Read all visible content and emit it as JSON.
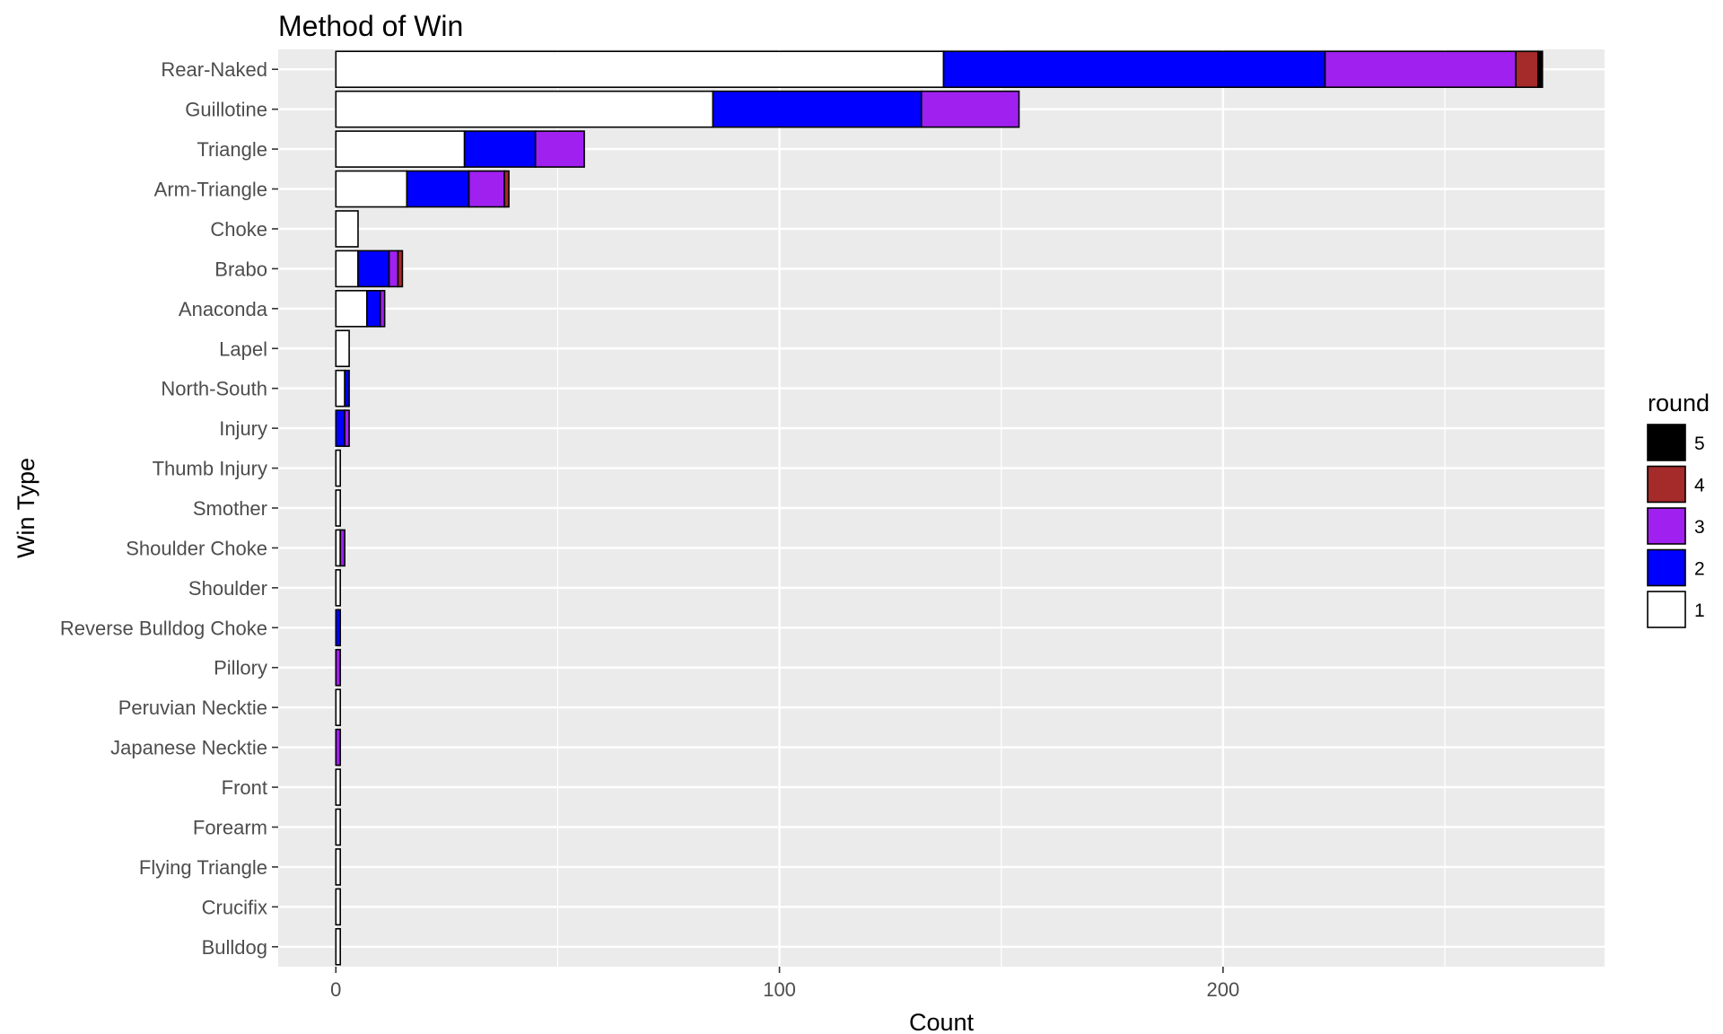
{
  "chart_data": {
    "type": "bar",
    "orientation": "horizontal",
    "stacked": true,
    "title": "Method of Win",
    "xlabel": "Count",
    "ylabel": "Win Type",
    "xlim": [
      -13,
      286
    ],
    "x_ticks": [
      0,
      100,
      200
    ],
    "grid": true,
    "legend": {
      "title": "round",
      "placement": "right",
      "entries": [
        "5",
        "4",
        "3",
        "2",
        "1"
      ]
    },
    "colors": {
      "1": "#ffffff",
      "2": "#0000ff",
      "3": "#a020f0",
      "4": "#a52a2a",
      "5": "#000000",
      "panel_background": "#ebebeb",
      "grid_line": "#ffffff"
    },
    "categories": [
      "Rear-Naked",
      "Guillotine",
      "Triangle",
      "Arm-Triangle",
      "Choke",
      "Brabo",
      "Anaconda",
      "Lapel",
      "North-South",
      "Injury",
      "Thumb Injury",
      "Smother",
      "Shoulder Choke",
      "Shoulder",
      "Reverse Bulldog Choke",
      "Pillory",
      "Peruvian Necktie",
      "Japanese Necktie",
      "Front",
      "Forearm",
      "Flying Triangle",
      "Crucifix",
      "Bulldog"
    ],
    "series": [
      {
        "name": "1",
        "values": [
          137,
          85,
          29,
          16,
          5,
          5,
          7,
          3,
          2,
          0,
          1,
          1,
          1,
          1,
          0,
          0,
          1,
          0,
          1,
          1,
          1,
          1,
          1
        ]
      },
      {
        "name": "2",
        "values": [
          86,
          47,
          16,
          14,
          0,
          7,
          3,
          0,
          1,
          2,
          0,
          0,
          0,
          0,
          1,
          0,
          0,
          0,
          0,
          0,
          0,
          0,
          0
        ]
      },
      {
        "name": "3",
        "values": [
          43,
          22,
          11,
          8,
          0,
          2,
          1,
          0,
          0,
          1,
          0,
          0,
          1,
          0,
          0,
          1,
          0,
          1,
          0,
          0,
          0,
          0,
          0
        ]
      },
      {
        "name": "4",
        "values": [
          5,
          0,
          0,
          1,
          0,
          1,
          0,
          0,
          0,
          0,
          0,
          0,
          0,
          0,
          0,
          0,
          0,
          0,
          0,
          0,
          0,
          0,
          0
        ]
      },
      {
        "name": "5",
        "values": [
          1,
          0,
          0,
          0,
          0,
          0,
          0,
          0,
          0,
          0,
          0,
          0,
          0,
          0,
          0,
          0,
          0,
          0,
          0,
          0,
          0,
          0,
          0
        ]
      }
    ]
  }
}
